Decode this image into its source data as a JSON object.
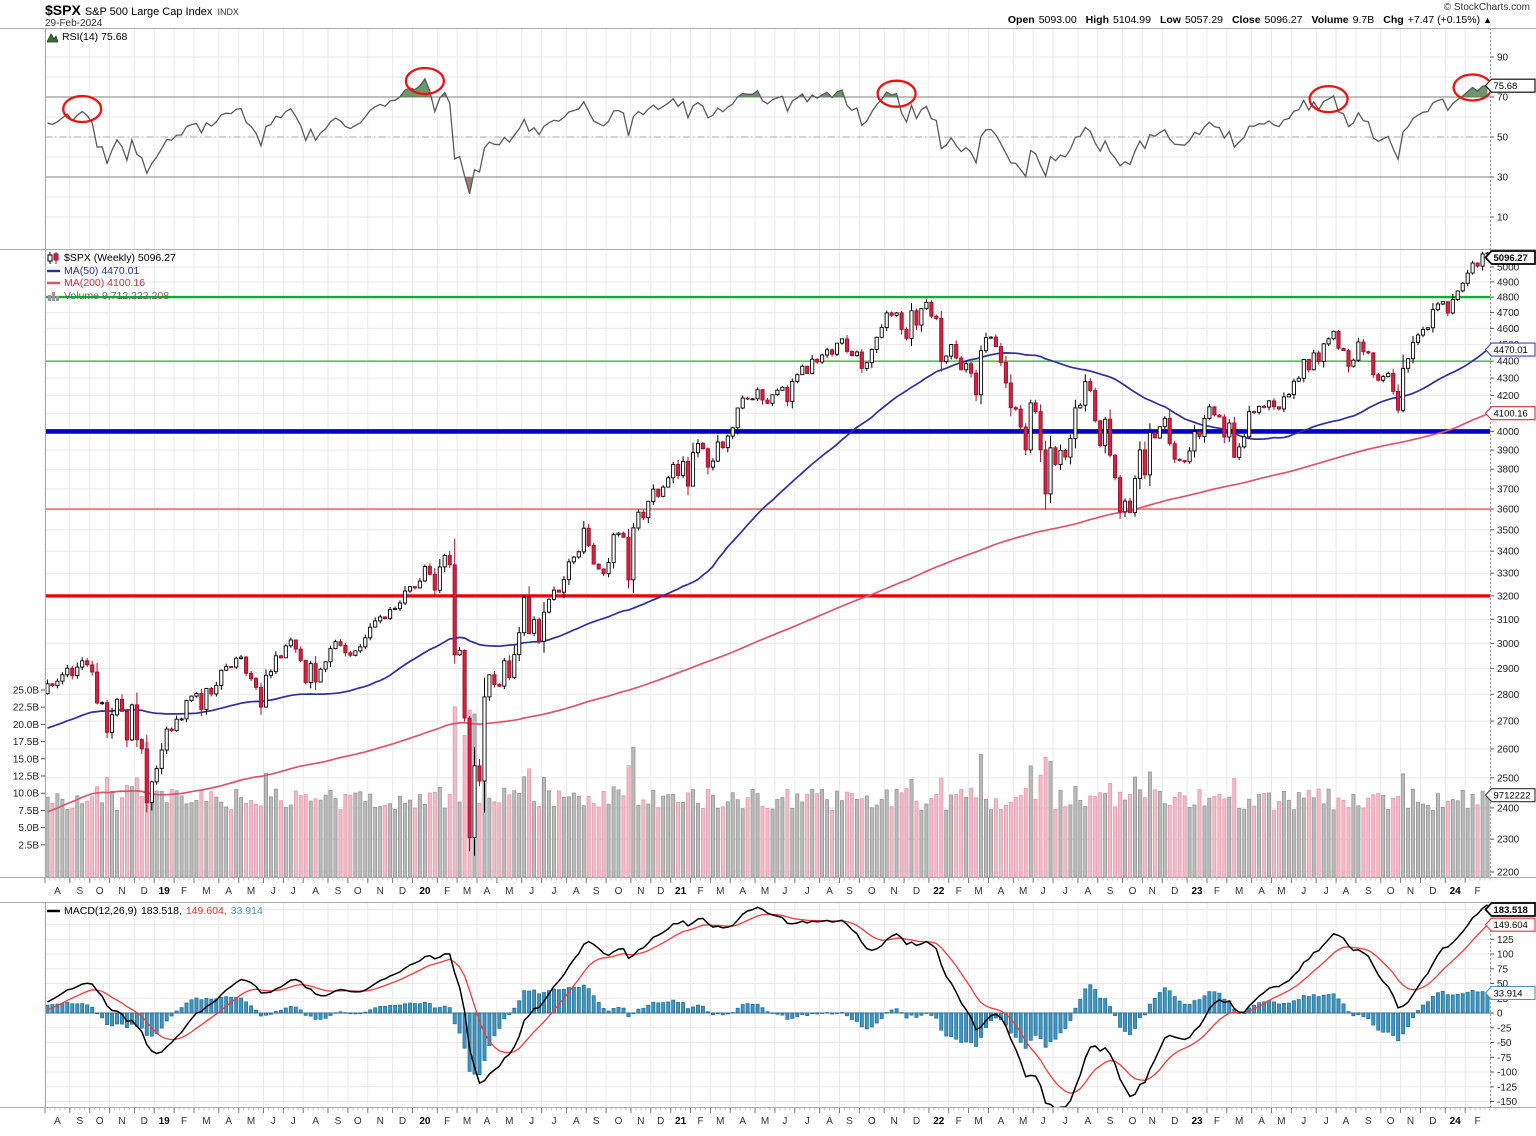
{
  "header": {
    "symbol": "$SPX",
    "name": "S&P 500 Large Cap Index",
    "exchange": "INDX",
    "date": "29-Feb-2024",
    "copyright": "© StockCharts.com",
    "quote": {
      "open_label": "Open",
      "open": "5093.00",
      "high_label": "High",
      "high": "5104.99",
      "low_label": "Low",
      "low": "5057.29",
      "close_label": "Close",
      "close": "5096.27",
      "volume_label": "Volume",
      "volume": "9.7B",
      "chg_label": "Chg",
      "chg": "+7.47 (+0.15%)",
      "direction": "▲"
    }
  },
  "rsi_panel": {
    "legend_label": "RSI(14) 75.68",
    "callout": "75.68",
    "yticks": [
      90,
      70,
      50,
      30,
      10
    ],
    "overbought": 70,
    "midline": 50,
    "oversold": 30
  },
  "main_panel": {
    "legend": {
      "series_label": "$SPX (Weekly) 5096.27",
      "ma50_label": "MA(50) 4470.01",
      "ma200_label": "MA(200) 4100.16",
      "volume_label": "Volume 9,712,222,208"
    },
    "price_tick_min": 2200,
    "price_tick_max": 5000,
    "price_tick_step": 100,
    "volume_ticks": [
      {
        "label": "25.0B",
        "value": 25.0
      },
      {
        "label": "22.5B",
        "value": 22.5
      },
      {
        "label": "20.0B",
        "value": 20.0
      },
      {
        "label": "17.5B",
        "value": 17.5
      },
      {
        "label": "15.0B",
        "value": 15.0
      },
      {
        "label": "12.5B",
        "value": 12.5
      },
      {
        "label": "10.0B",
        "value": 10.0
      },
      {
        "label": "7.5B",
        "value": 7.5
      },
      {
        "label": "5.0B",
        "value": 5.0
      },
      {
        "label": "2.5B",
        "value": 2.5
      }
    ],
    "hlines": [
      {
        "value": 4800,
        "color": "#00b32c",
        "width": 2.4
      },
      {
        "value": 4400,
        "color": "#4fc64f",
        "width": 1.6
      },
      {
        "value": 4000,
        "color": "#0000c8",
        "width": 4.6
      },
      {
        "value": 3600,
        "color": "#f07f7f",
        "width": 2.0
      },
      {
        "value": 3200,
        "color": "#ee0000",
        "width": 3.2
      }
    ],
    "callouts": [
      {
        "text": "5096.27",
        "value": 5096.27,
        "color": "#000000",
        "bold": true
      },
      {
        "text": "4470.01",
        "value": 4470.01,
        "color": "#4444bb",
        "bold": false
      },
      {
        "text": "4100.16",
        "value": 4100.16,
        "color": "#cc3344",
        "bold": false
      },
      {
        "text": "9712222",
        "volume_value": 9.712,
        "color": "#333333",
        "bold": false
      }
    ]
  },
  "macd_panel": {
    "legend_prefix": "MACD(12,26,9)",
    "legend_values": [
      {
        "text": "183.518,"
      },
      {
        "text": "149.604,"
      },
      {
        "text": "33.914"
      }
    ],
    "yticks": [
      175,
      150,
      125,
      100,
      75,
      50,
      25,
      0,
      -25,
      -50,
      -75,
      -100,
      -125,
      -150
    ],
    "callouts": [
      {
        "text": "183.518",
        "value": 183.518,
        "color": "#000000"
      },
      {
        "text": "149.604",
        "value": 149.604,
        "color": "#ee3333"
      },
      {
        "text": "33.914",
        "value": 33.914,
        "color": "#4593be"
      }
    ]
  },
  "colors": {
    "up_fill": "#ffffff",
    "up_stroke": "#000000",
    "down_fill": "#d22442",
    "down_stroke": "#9c0f28",
    "ma50": "#2e2ea0",
    "ma200": "#d9576d",
    "vol_up": "#bbbbbb",
    "vol_up_border": "#8f8f8f",
    "vol_down": "#f3bac7",
    "vol_down_border": "#dd95a8",
    "rsi_line": "#5a5a5a",
    "rsi_fill_over": "#4a7a46",
    "rsi_fill_under": "#8a5f5a",
    "circle": "#ee1111",
    "macd_line": "#000000",
    "macd_signal": "#f23b3b",
    "hist_fill": "#4394be",
    "hist_stroke": "#1b6c96",
    "grid": "#e9e9e9",
    "axis_text": "#222222",
    "border": "#aaaaaa"
  },
  "chart_data": {
    "type": "candlestick",
    "symbol": "$SPX",
    "timeframe": "weekly",
    "range": "Aug 2018 - Feb 2024",
    "log_scale": true,
    "price_axis_range": [
      2200,
      5100
    ],
    "last_bar": {
      "open": 5093.0,
      "high": 5104.99,
      "low": 5057.29,
      "close": 5096.27,
      "volume": 9712222208
    },
    "indicators": {
      "rsi_period": 14,
      "rsi_last": 75.68,
      "ma50_last": 4470.01,
      "ma200_last": 4100.16,
      "macd_params": [
        12,
        26,
        9
      ],
      "macd_last": 183.518,
      "macd_signal_last": 149.604,
      "macd_hist_last": 33.914
    },
    "rsi_overbought_circles_week_idx": [
      7,
      76,
      171,
      258,
      287
    ],
    "months": [
      [
        "A",
        5
      ],
      [
        "S",
        4
      ],
      [
        "O",
        4
      ],
      [
        "N",
        5
      ],
      [
        "D",
        4
      ],
      [
        "19",
        4
      ],
      [
        "F",
        4
      ],
      [
        "M",
        5
      ],
      [
        "A",
        4
      ],
      [
        "M",
        5
      ],
      [
        "J",
        4
      ],
      [
        "J",
        4
      ],
      [
        "A",
        5
      ],
      [
        "S",
        4
      ],
      [
        "O",
        4
      ],
      [
        "N",
        5
      ],
      [
        "D",
        4
      ],
      [
        "20",
        5
      ],
      [
        "F",
        4
      ],
      [
        "M",
        4
      ],
      [
        "A",
        4
      ],
      [
        "M",
        5
      ],
      [
        "J",
        4
      ],
      [
        "J",
        5
      ],
      [
        "A",
        4
      ],
      [
        "S",
        4
      ],
      [
        "O",
        5
      ],
      [
        "N",
        4
      ],
      [
        "D",
        4
      ],
      [
        "21",
        4
      ],
      [
        "F",
        4
      ],
      [
        "M",
        4
      ],
      [
        "A",
        5
      ],
      [
        "M",
        4
      ],
      [
        "J",
        4
      ],
      [
        "J",
        5
      ],
      [
        "A",
        4
      ],
      [
        "S",
        4
      ],
      [
        "O",
        5
      ],
      [
        "N",
        4
      ],
      [
        "D",
        5
      ],
      [
        "22",
        4
      ],
      [
        "F",
        4
      ],
      [
        "M",
        4
      ],
      [
        "A",
        5
      ],
      [
        "M",
        4
      ],
      [
        "J",
        4
      ],
      [
        "J",
        5
      ],
      [
        "A",
        4
      ],
      [
        "S",
        5
      ],
      [
        "O",
        4
      ],
      [
        "N",
        4
      ],
      [
        "D",
        5
      ],
      [
        "23",
        4
      ],
      [
        "F",
        4
      ],
      [
        "M",
        5
      ],
      [
        "A",
        4
      ],
      [
        "M",
        4
      ],
      [
        "J",
        5
      ],
      [
        "J",
        4
      ],
      [
        "A",
        4
      ],
      [
        "S",
        5
      ],
      [
        "O",
        4
      ],
      [
        "N",
        4
      ],
      [
        "D",
        5
      ],
      [
        "24",
        4
      ],
      [
        "F",
        5
      ]
    ],
    "warmup_closes": [
      2762,
      2620,
      2732,
      2691,
      2720,
      2787,
      2752,
      2588,
      2640,
      2663,
      2604,
      2656,
      2670,
      2663,
      2727,
      2713,
      2721,
      2734,
      2779,
      2762,
      2718,
      2759,
      2754,
      2713,
      2760,
      2802
    ],
    "weekly_closes_approx": [
      2840,
      2833,
      2850,
      2875,
      2901,
      2872,
      2905,
      2930,
      2914,
      2886,
      2767,
      2768,
      2659,
      2723,
      2781,
      2736,
      2632,
      2760,
      2633,
      2600,
      2417,
      2486,
      2532,
      2596,
      2671,
      2665,
      2707,
      2708,
      2776,
      2793,
      2803,
      2743,
      2822,
      2801,
      2834,
      2893,
      2907,
      2905,
      2940,
      2945,
      2881,
      2860,
      2826,
      2752,
      2873,
      2887,
      2950,
      2942,
      2990,
      3014,
      2977,
      2932,
      2845,
      2919,
      2847,
      2897,
      2926,
      2979,
      3007,
      2992,
      2962,
      2952,
      2970,
      2986,
      3023,
      3067,
      3093,
      3110,
      3103,
      3141,
      3146,
      3169,
      3221,
      3240,
      3235,
      3265,
      3330,
      3295,
      3225,
      3328,
      3380,
      3338,
      2954,
      2972,
      2711,
      2305,
      2541,
      2489,
      2790,
      2875,
      2837,
      2831,
      2930,
      2864,
      2955,
      3044,
      3194,
      3041,
      3098,
      3009,
      3130,
      3185,
      3225,
      3216,
      3271,
      3351,
      3373,
      3397,
      3508,
      3427,
      3341,
      3319,
      3298,
      3348,
      3477,
      3484,
      3465,
      3270,
      3509,
      3585,
      3558,
      3638,
      3699,
      3663,
      3709,
      3756,
      3825,
      3768,
      3841,
      3714,
      3886,
      3935,
      3907,
      3811,
      3842,
      3943,
      3913,
      3975,
      4020,
      4129,
      4185,
      4180,
      4181,
      4233,
      4174,
      4156,
      4204,
      4230,
      4247,
      4166,
      4281,
      4320,
      4370,
      4327,
      4412,
      4395,
      4437,
      4468,
      4442,
      4509,
      4535,
      4459,
      4433,
      4455,
      4357,
      4391,
      4471,
      4545,
      4605,
      4698,
      4683,
      4698,
      4594,
      4538,
      4712,
      4621,
      4725,
      4766,
      4677,
      4663,
      4398,
      4431,
      4501,
      4419,
      4349,
      4385,
      4329,
      4204,
      4463,
      4543,
      4546,
      4488,
      4393,
      4272,
      4131,
      4123,
      4024,
      3901,
      4158,
      4109,
      3901,
      3675,
      3912,
      3825,
      3899,
      3863,
      3962,
      4130,
      4145,
      4280,
      4228,
      4058,
      3924,
      4067,
      3873,
      3757,
      3586,
      3639,
      3583,
      3752,
      3901,
      3771,
      3993,
      3965,
      4026,
      4072,
      3934,
      3852,
      3845,
      3839,
      3895,
      3999,
      3973,
      4071,
      4136,
      4090,
      4079,
      3970,
      4046,
      3862,
      3917,
      3971,
      4109,
      4105,
      4138,
      4134,
      4169,
      4136,
      4124,
      4192,
      4205,
      4282,
      4299,
      4410,
      4349,
      4450,
      4399,
      4505,
      4536,
      4582,
      4478,
      4464,
      4370,
      4406,
      4516,
      4457,
      4450,
      4320,
      4288,
      4309,
      4328,
      4224,
      4117,
      4358,
      4415,
      4514,
      4559,
      4594,
      4604,
      4719,
      4755,
      4770,
      4697,
      4784,
      4840,
      4891,
      4959,
      5027,
      5006,
      5089,
      5096
    ]
  }
}
